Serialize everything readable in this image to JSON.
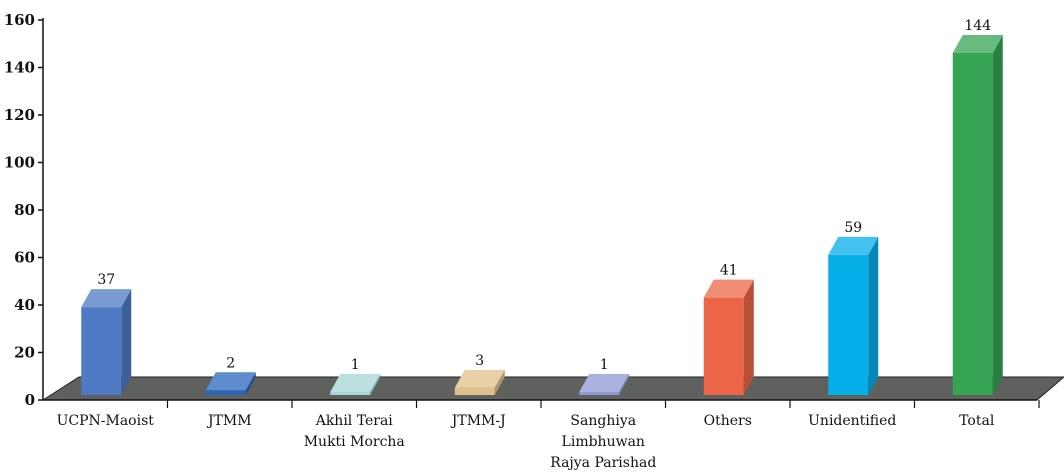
{
  "chart_data": {
    "type": "bar",
    "title": "",
    "xlabel": "",
    "ylabel": "",
    "ylim": [
      0,
      160
    ],
    "yticks": [
      0,
      20,
      40,
      60,
      80,
      100,
      120,
      140,
      160
    ],
    "grid": false,
    "legend": "none",
    "categories": [
      [
        "UCPN-Maoist"
      ],
      [
        "JTMM"
      ],
      [
        "Akhil Terai",
        "Mukti Morcha"
      ],
      [
        "JTMM-J"
      ],
      [
        "Sanghiya",
        "Limbhuwan",
        "Rajya Parishad"
      ],
      [
        "Others"
      ],
      [
        "Unidentified"
      ],
      [
        "Total"
      ]
    ],
    "values": [
      37,
      2,
      1,
      3,
      1,
      41,
      59,
      144
    ],
    "colors": [
      "#4f7bc4",
      "#2a66b8",
      "#a6d7d6",
      "#e0c08a",
      "#8d98d2",
      "#ec6547",
      "#06aeea",
      "#35a453"
    ],
    "floor_color": "#5e615e"
  }
}
